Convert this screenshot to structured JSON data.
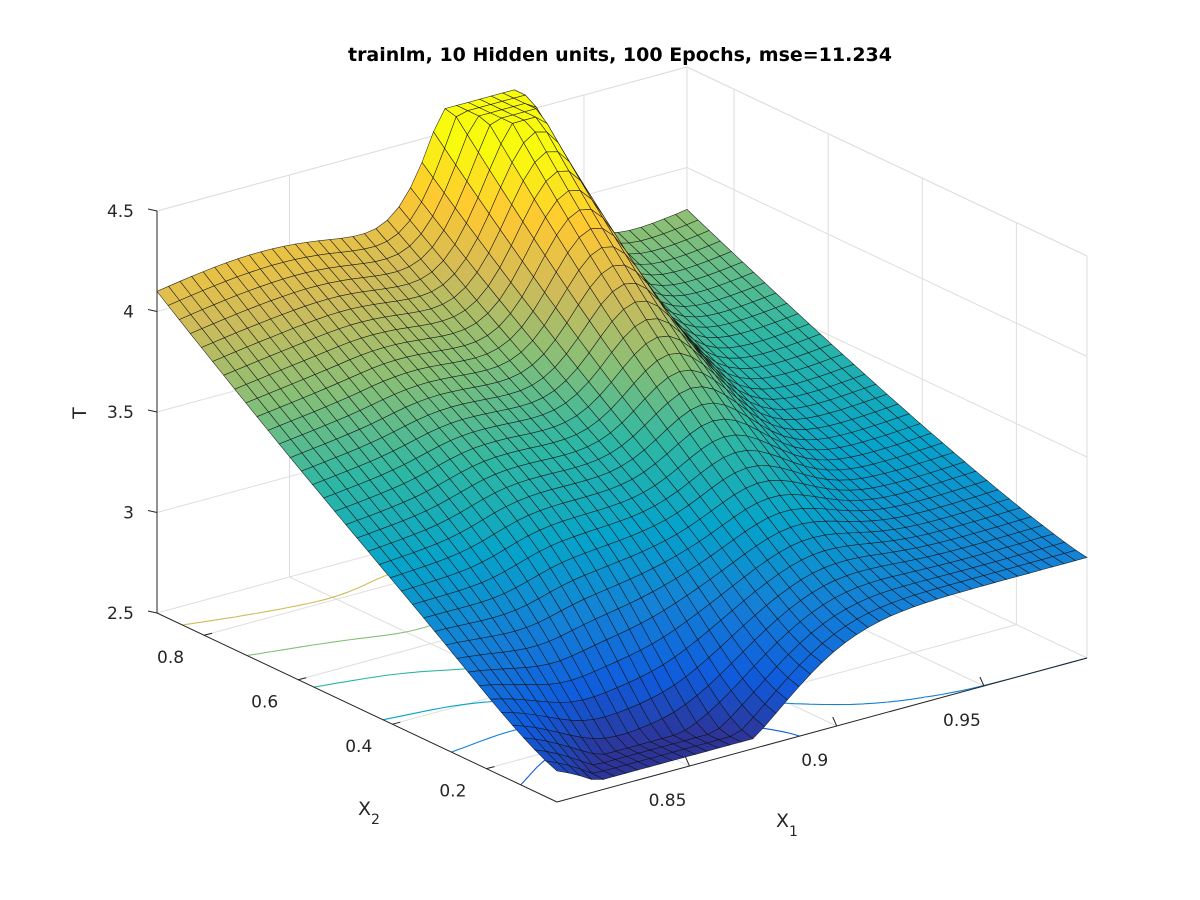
{
  "chart_data": {
    "type": "surface",
    "title": "trainlm, 10 Hidden units, 100 Epochs, mse=11.234",
    "xlabel": {
      "base": "X",
      "sub": "1"
    },
    "ylabel": {
      "base": "X",
      "sub": "2"
    },
    "zlabel": "T",
    "xlim": [
      0.805,
      0.985
    ],
    "ylim": [
      0.05,
      0.9
    ],
    "zlim": [
      2.5,
      4.5
    ],
    "xticks": [
      0.85,
      0.9,
      0.95
    ],
    "xtick_labels": [
      "0.85",
      "0.9",
      "0.95"
    ],
    "yticks": [
      0.2,
      0.4,
      0.6,
      0.8
    ],
    "ytick_labels": [
      "0.2",
      "0.4",
      "0.6",
      "0.8"
    ],
    "zticks": [
      2.5,
      3,
      3.5,
      4,
      4.5
    ],
    "ztick_labels": [
      "2.5",
      "3",
      "3.5",
      "4",
      "4.5"
    ],
    "grid": true,
    "colormap": "parula",
    "has_contour_projection": true,
    "surface_samples": [
      {
        "x1": 0.805,
        "x2": 0.9,
        "T": 4.02
      },
      {
        "x1": 0.805,
        "x2": 0.05,
        "T": 2.62
      },
      {
        "x1": 0.985,
        "x2": 0.05,
        "T": 2.72
      },
      {
        "x1": 0.985,
        "x2": 0.9,
        "T": 3.05
      },
      {
        "x1": 0.92,
        "x2": 0.9,
        "T": 4.6
      },
      {
        "x1": 0.86,
        "x2": 0.9,
        "T": 3.9
      },
      {
        "x1": 0.84,
        "x2": 0.4,
        "T": 3.35
      },
      {
        "x1": 0.9,
        "x2": 0.5,
        "T": 3.2
      }
    ]
  }
}
